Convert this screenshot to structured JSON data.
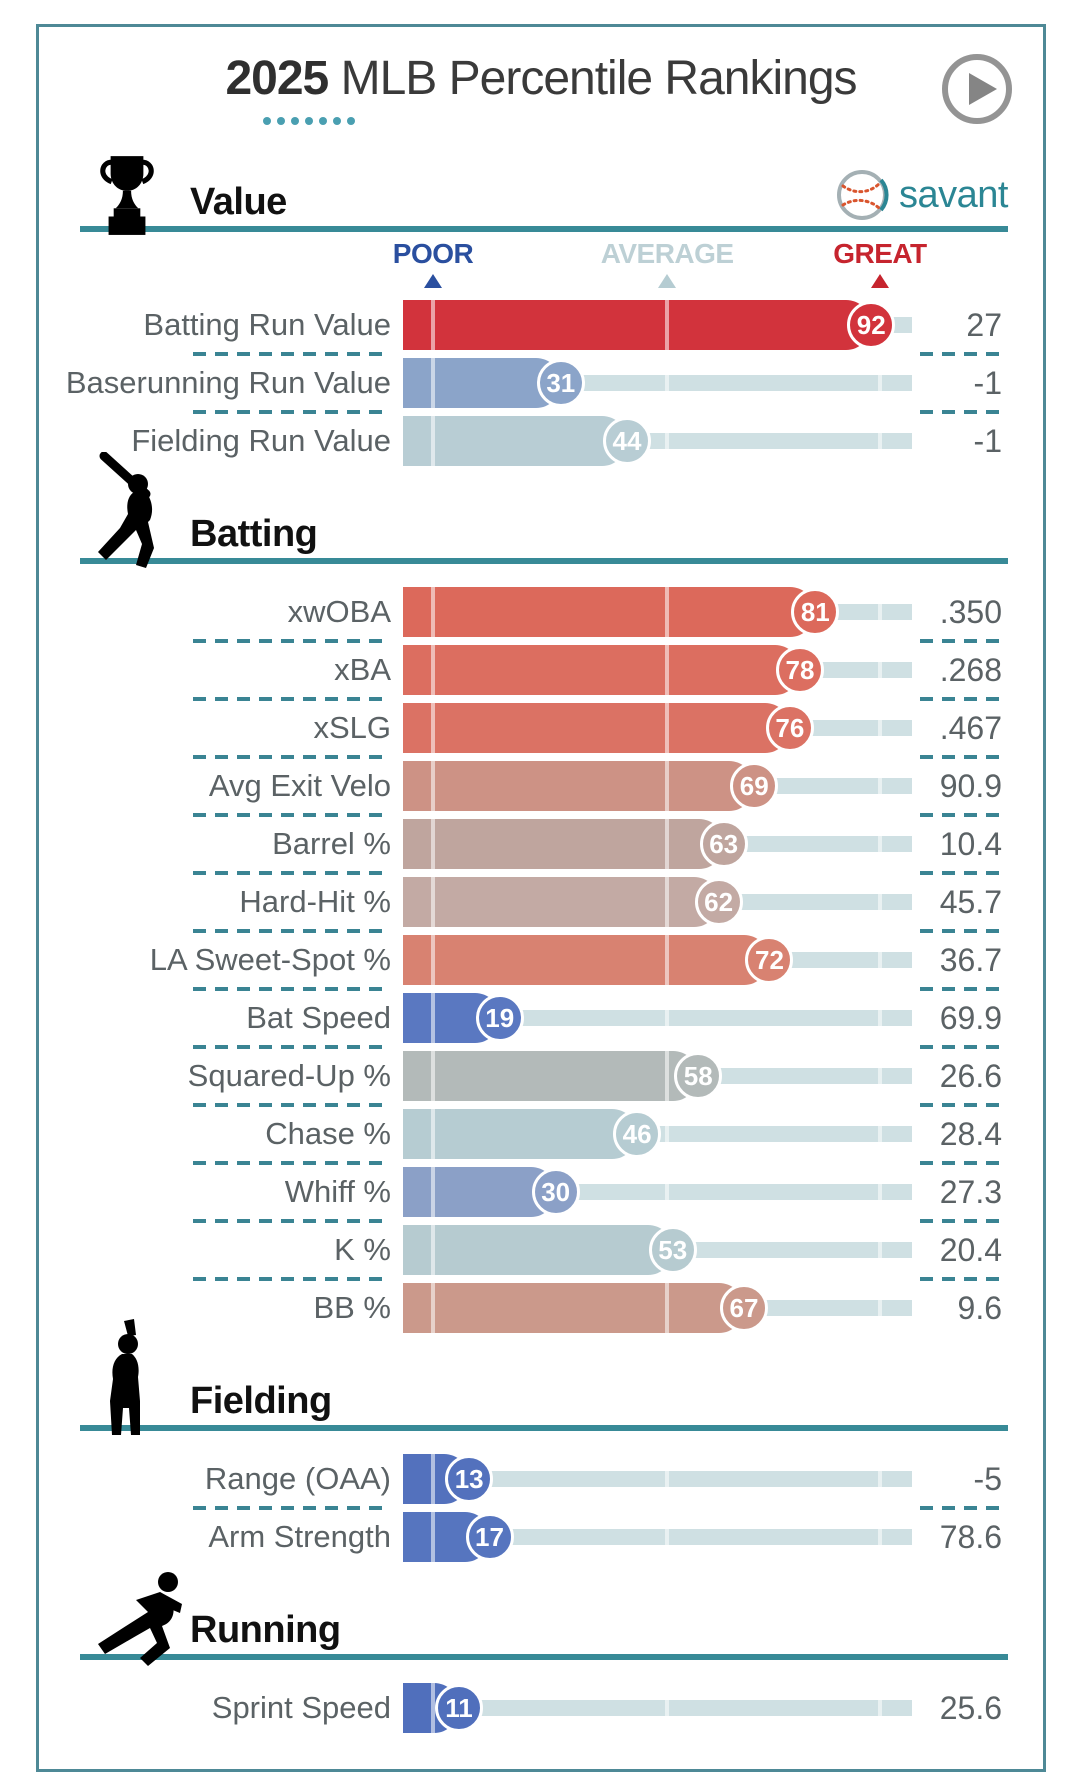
{
  "page": {
    "title_year": "2025",
    "title_rest": " MLB Percentile Rankings",
    "title_dots_count": 7,
    "logo_text": "savant",
    "colors": {
      "card_border": "#4e8996",
      "section_rule": "#388a97",
      "separator_dash": "#3a8493",
      "track": "#cfe0e3",
      "text_gray": "#5b6265",
      "poor_blue": "#2a4f9f",
      "average_gray": "#bdd0d5",
      "great_red": "#c6242e",
      "savant_teal": "#2b8694"
    }
  },
  "chart_data": {
    "type": "bar",
    "title": "2025 MLB Percentile Rankings",
    "xlabel": "MLB percentile",
    "xlim": [
      0,
      100
    ],
    "grid": false,
    "scale_labels": [
      "POOR",
      "AVERAGE",
      "GREAT"
    ],
    "scale_positions_pct": [
      5.9,
      51.9,
      93.7
    ],
    "sections": [
      {
        "name": "Value",
        "icon": "trophy-icon",
        "show_scale": true,
        "show_logo": true,
        "rows": [
          {
            "label": "Batting Run Value",
            "percentile": 92,
            "value": "27",
            "color": "#d2333c"
          },
          {
            "label": "Baserunning Run Value",
            "percentile": 31,
            "value": "-1",
            "color": "#8ba4c9"
          },
          {
            "label": "Fielding Run Value",
            "percentile": 44,
            "value": "-1",
            "color": "#b8cdd4"
          }
        ]
      },
      {
        "name": "Batting",
        "icon": "batter-icon",
        "show_scale": false,
        "show_logo": false,
        "rows": [
          {
            "label": "xwOBA",
            "percentile": 81,
            "value": ".350",
            "color": "#dc695b"
          },
          {
            "label": "xBA",
            "percentile": 78,
            "value": ".268",
            "color": "#dc6e60"
          },
          {
            "label": "xSLG",
            "percentile": 76,
            "value": ".467",
            "color": "#db7264"
          },
          {
            "label": "Avg Exit Velo",
            "percentile": 69,
            "value": "90.9",
            "color": "#cd9285"
          },
          {
            "label": "Barrel %",
            "percentile": 63,
            "value": "10.4",
            "color": "#bfa59e"
          },
          {
            "label": "Hard-Hit %",
            "percentile": 62,
            "value": "45.7",
            "color": "#c3aaa4"
          },
          {
            "label": "LA Sweet-Spot %",
            "percentile": 72,
            "value": "36.7",
            "color": "#d88271"
          },
          {
            "label": "Bat Speed",
            "percentile": 19,
            "value": "69.9",
            "color": "#5a78c1"
          },
          {
            "label": "Squared-Up %",
            "percentile": 58,
            "value": "26.6",
            "color": "#b3bab9"
          },
          {
            "label": "Chase %",
            "percentile": 46,
            "value": "28.4",
            "color": "#b6ccd2"
          },
          {
            "label": "Whiff %",
            "percentile": 30,
            "value": "27.3",
            "color": "#8ba0c7"
          },
          {
            "label": "K %",
            "percentile": 53,
            "value": "20.4",
            "color": "#b6cbd0"
          },
          {
            "label": "BB %",
            "percentile": 67,
            "value": "9.6",
            "color": "#cb998b"
          }
        ]
      },
      {
        "name": "Fielding",
        "icon": "fielder-icon",
        "show_scale": false,
        "show_logo": false,
        "rows": [
          {
            "label": "Range (OAA)",
            "percentile": 13,
            "value": "-5",
            "color": "#5371bd"
          },
          {
            "label": "Arm Strength",
            "percentile": 17,
            "value": "78.6",
            "color": "#5675bf"
          }
        ]
      },
      {
        "name": "Running",
        "icon": "runner-icon",
        "show_scale": false,
        "show_logo": false,
        "rows": [
          {
            "label": "Sprint Speed",
            "percentile": 11,
            "value": "25.6",
            "color": "#506fbc"
          }
        ]
      }
    ]
  }
}
